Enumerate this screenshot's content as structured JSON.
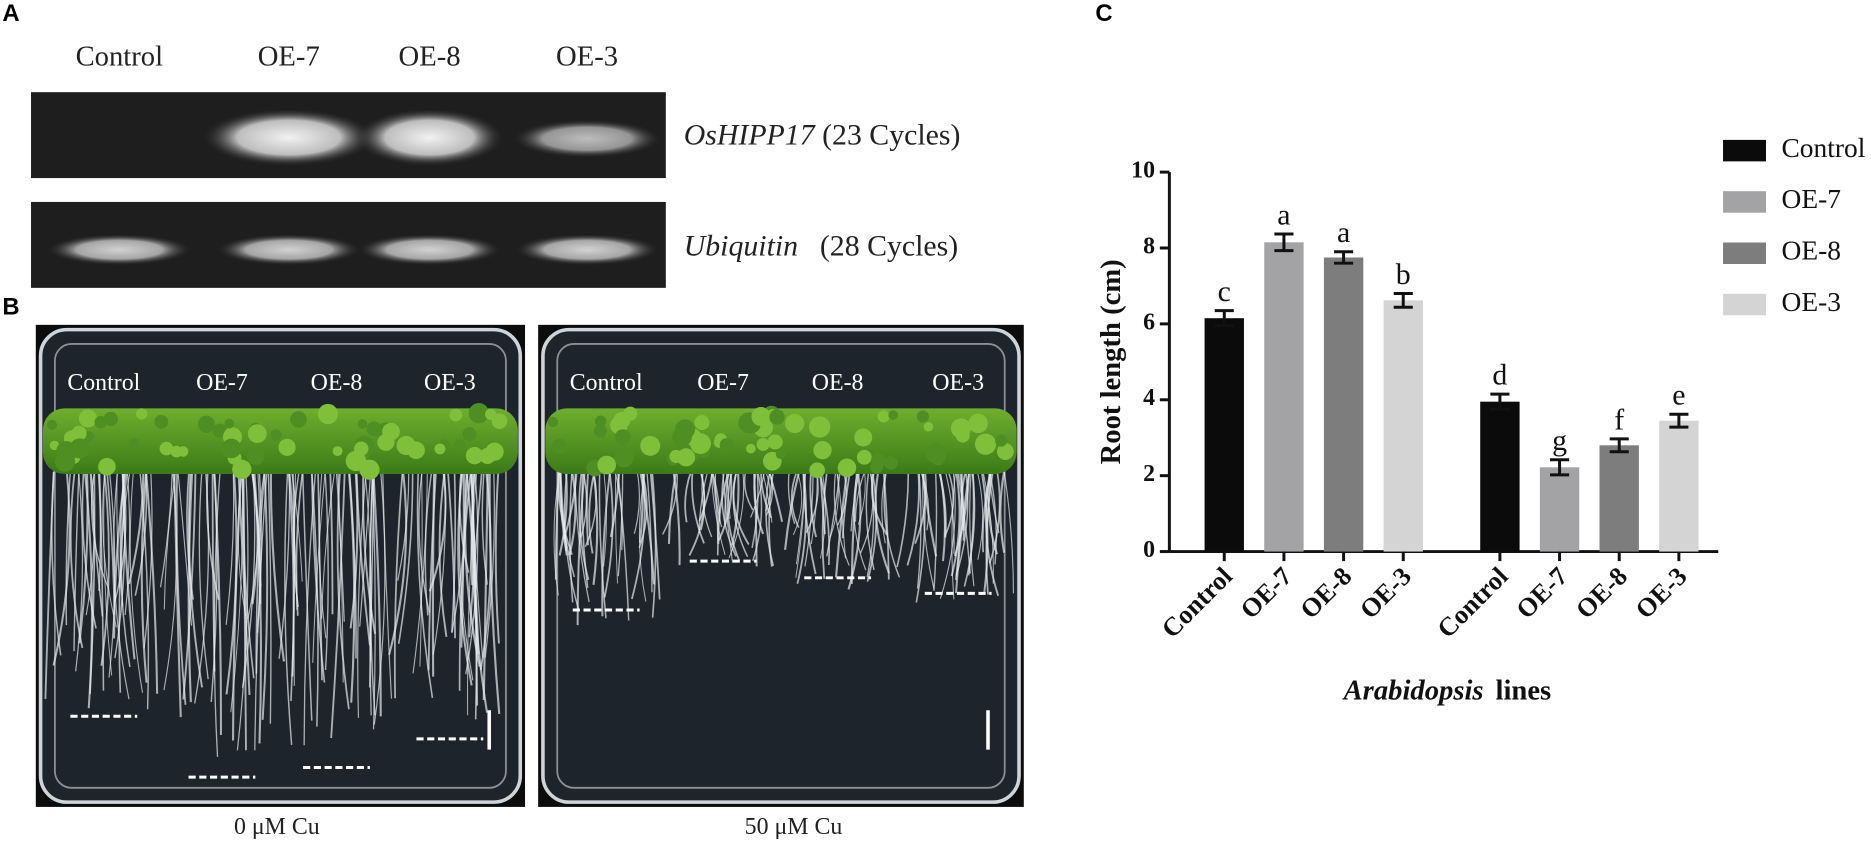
{
  "panels": {
    "a": {
      "label": "A",
      "lanes": [
        "Control",
        "OE-7",
        "OE-8",
        "OE-3"
      ],
      "rows": [
        {
          "gene": "OsHIPP17",
          "cycles": "(23 Cycles)"
        },
        {
          "gene": "Ubiquitin",
          "cycles": "(28 Cycles)"
        }
      ]
    },
    "b": {
      "label": "B",
      "plates": [
        {
          "lanes": [
            "Control",
            "OE-7",
            "OE-8",
            "OE-3"
          ],
          "caption": "0 μM Cu"
        },
        {
          "lanes": [
            "Control",
            "OE-7",
            "OE-8",
            "OE-3"
          ],
          "caption": "50 μM Cu"
        }
      ]
    },
    "c": {
      "label": "C"
    }
  },
  "chart_data": {
    "type": "bar",
    "ylabel": "Root length  (cm)",
    "xlabel_italic": "Arabidopsis",
    "xlabel_rest": "lines",
    "categories": [
      null,
      null
    ],
    "xtick_labels": [
      "Control",
      "OE-7",
      "OE-8",
      "OE-3",
      "Control",
      "OE-7",
      "OE-8",
      "OE-3"
    ],
    "series": [
      {
        "name": "Control",
        "color": "#0b0b0b",
        "values": [
          6.15,
          3.95
        ],
        "errors": [
          0.2,
          0.2
        ],
        "letters": [
          "c",
          "d"
        ]
      },
      {
        "name": "OE-7",
        "color": "#a3a3a6",
        "values": [
          8.15,
          2.22
        ],
        "errors": [
          0.22,
          0.2
        ],
        "letters": [
          "a",
          "g"
        ]
      },
      {
        "name": "OE-8",
        "color": "#7d7d7d",
        "values": [
          7.75,
          2.8
        ],
        "errors": [
          0.15,
          0.17
        ],
        "letters": [
          "a",
          "f"
        ]
      },
      {
        "name": "OE-3",
        "color": "#d4d4d4",
        "values": [
          6.62,
          3.45
        ],
        "errors": [
          0.18,
          0.17
        ],
        "letters": [
          "b",
          "e"
        ]
      }
    ],
    "ylim": [
      0,
      10
    ],
    "yticks": [
      0,
      2,
      4,
      6,
      8,
      10
    ]
  }
}
